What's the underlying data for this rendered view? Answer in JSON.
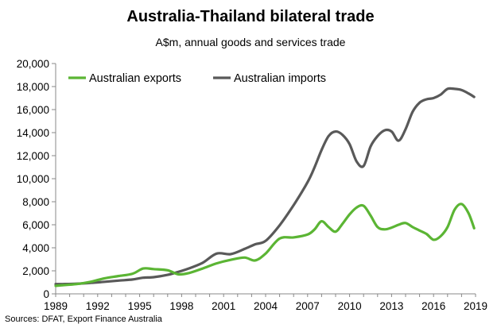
{
  "title": "Australia-Thailand bilateral trade",
  "subtitle": "A$m, annual goods and services trade",
  "source": "Sources: DFAT, Export Finance Australia",
  "chart_data": {
    "type": "line",
    "title": "Australia-Thailand bilateral trade",
    "subtitle": "A$m, annual goods and services trade",
    "xlabel": "",
    "ylabel": "",
    "xlim": [
      1989,
      2019
    ],
    "ylim": [
      0,
      20000
    ],
    "y_ticks": [
      0,
      2000,
      4000,
      6000,
      8000,
      10000,
      12000,
      14000,
      16000,
      18000,
      20000
    ],
    "y_tick_labels": [
      "0",
      "2,000",
      "4,000",
      "6,000",
      "8,000",
      "10,000",
      "12,000",
      "14,000",
      "16,000",
      "18,000",
      "20,000"
    ],
    "x_ticks": [
      1989,
      1992,
      1995,
      1998,
      2001,
      2004,
      2007,
      2010,
      2013,
      2016,
      2019
    ],
    "x_tick_labels": [
      "1989",
      "1992",
      "1995",
      "1998",
      "2001",
      "2004",
      "2007",
      "2010",
      "2013",
      "2016",
      "2019"
    ],
    "grid": false,
    "legend_position": "top-left",
    "x": [
      1989.0,
      1989.5,
      1990.5,
      1991.5,
      1992.5,
      1993.5,
      1994.5,
      1995.25,
      1996.0,
      1997.0,
      1997.75,
      1998.5,
      1999.5,
      2000.5,
      2001.5,
      2002.5,
      2003.25,
      2004.0,
      2005.0,
      2006.0,
      2007.0,
      2007.5,
      2008.0,
      2008.5,
      2009.0,
      2009.5,
      2010.0,
      2010.5,
      2011.0,
      2011.5,
      2012.0,
      2012.5,
      2013.0,
      2013.5,
      2014.0,
      2014.5,
      2015.0,
      2015.5,
      2016.0,
      2016.5,
      2017.0,
      2017.5,
      2018.0,
      2018.5,
      2018.9
    ],
    "series": [
      {
        "name": "Australian exports",
        "color": "#5bb534",
        "values": [
          700,
          750,
          850,
          1050,
          1350,
          1550,
          1750,
          2200,
          2150,
          2050,
          1700,
          1800,
          2200,
          2650,
          2950,
          3150,
          2900,
          3500,
          4800,
          4900,
          5150,
          5600,
          6300,
          5800,
          5400,
          6100,
          6900,
          7500,
          7650,
          6800,
          5800,
          5600,
          5750,
          6000,
          6150,
          5800,
          5500,
          5200,
          4700,
          5000,
          5800,
          7300,
          7800,
          7000,
          5700
        ]
      },
      {
        "name": "Australian imports",
        "color": "#595959",
        "values": [
          850,
          850,
          880,
          950,
          1050,
          1150,
          1250,
          1400,
          1450,
          1650,
          1900,
          2200,
          2700,
          3500,
          3450,
          3900,
          4300,
          4600,
          5950,
          7700,
          9700,
          11000,
          12500,
          13700,
          14100,
          13800,
          13000,
          11500,
          11100,
          12800,
          13700,
          14200,
          14100,
          13300,
          14300,
          15800,
          16600,
          16900,
          17000,
          17300,
          17800,
          17800,
          17700,
          17400,
          17100
        ]
      }
    ]
  }
}
